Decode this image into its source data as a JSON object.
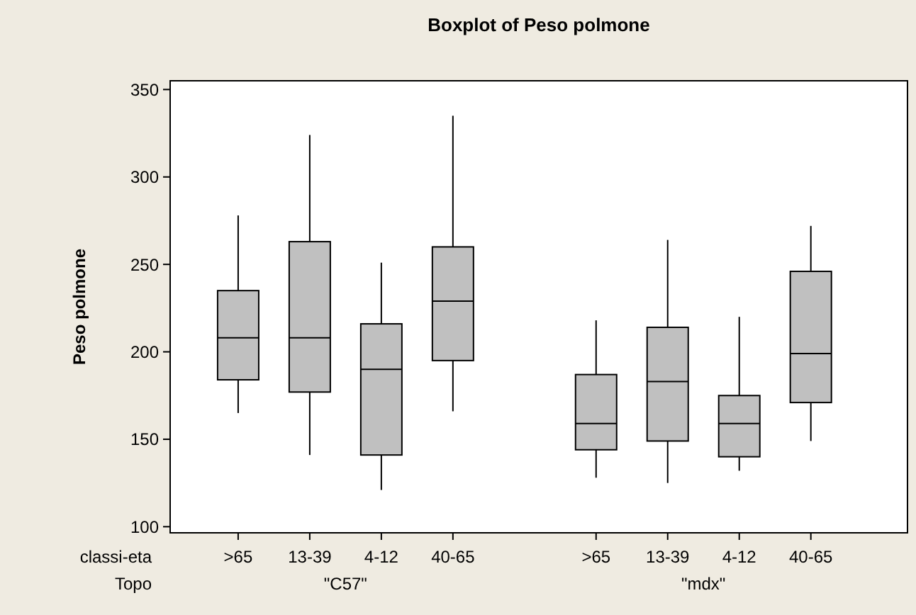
{
  "chart_data": {
    "type": "box",
    "title": "Boxplot of Peso polmone",
    "ylabel": "Peso polmone",
    "categories": [
      ">65",
      "13-39",
      "4-12",
      "40-65",
      null,
      ">65",
      "13-39",
      "4-12",
      "40-65"
    ],
    "boxes": [
      {
        "low": 165,
        "q1": 184,
        "median": 208,
        "q3": 235,
        "high": 278
      },
      {
        "low": 141,
        "q1": 177,
        "median": 208,
        "q3": 263,
        "high": 324
      },
      {
        "low": 121,
        "q1": 141,
        "median": 190,
        "q3": 216,
        "high": 251
      },
      {
        "low": 166,
        "q1": 195,
        "median": 229,
        "q3": 260,
        "high": 335
      },
      null,
      {
        "low": 128,
        "q1": 144,
        "median": 159,
        "q3": 187,
        "high": 218
      },
      {
        "low": 125,
        "q1": 149,
        "median": 183,
        "q3": 214,
        "high": 264
      },
      {
        "low": 132,
        "q1": 140,
        "median": 159,
        "q3": 175,
        "high": 220
      },
      {
        "low": 149,
        "q1": 171,
        "median": 199,
        "q3": 246,
        "high": 272
      }
    ],
    "color": "#c0c0c0",
    "ylim": [
      96.5,
      355
    ],
    "yticks": [
      100,
      150,
      200,
      250,
      300,
      350
    ],
    "annotations": [
      "classi-eta",
      "Topo",
      "\"C57\"",
      "\"mdx\""
    ],
    "grid": false
  }
}
